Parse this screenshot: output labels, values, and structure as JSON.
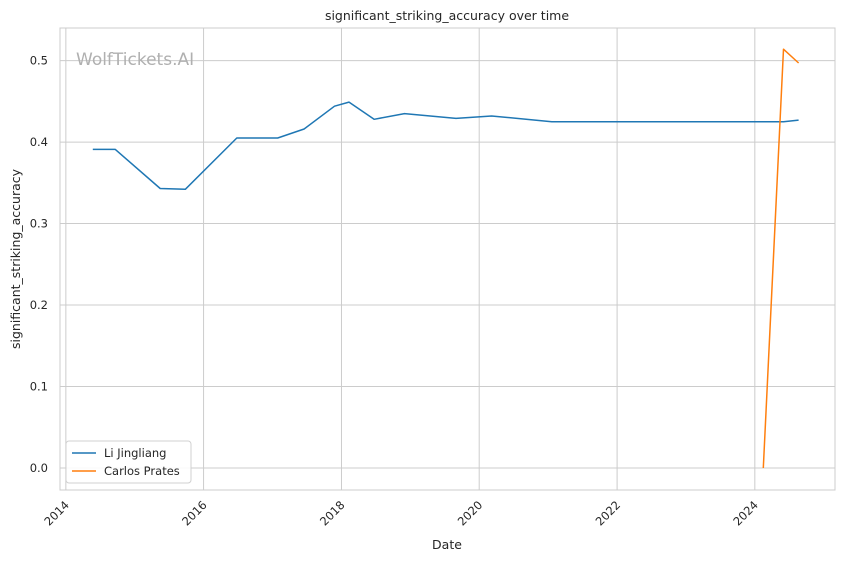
{
  "watermark": "WolfTickets.AI",
  "chart_data": {
    "type": "line",
    "title": "significant_striking_accuracy over time",
    "xlabel": "Date",
    "ylabel": "significant_striking_accuracy",
    "x_ticks": [
      "2014",
      "2016",
      "2018",
      "2020",
      "2022",
      "2024"
    ],
    "y_ticks": [
      "0.0",
      "0.1",
      "0.2",
      "0.3",
      "0.4",
      "0.5"
    ],
    "xlim": [
      "2013-12-01",
      "2025-03-01"
    ],
    "ylim": [
      -0.027,
      0.54
    ],
    "grid": true,
    "legend_placement": "lower-left",
    "series": [
      {
        "name": "Li Jingliang",
        "color": "#1f77b4",
        "points": [
          [
            "2014-05-24",
            0.391
          ],
          [
            "2014-09-20",
            0.391
          ],
          [
            "2015-05-16",
            0.343
          ],
          [
            "2015-09-26",
            0.342
          ],
          [
            "2016-06-25",
            0.405
          ],
          [
            "2017-01-28",
            0.405
          ],
          [
            "2017-06-17",
            0.416
          ],
          [
            "2017-11-25",
            0.444
          ],
          [
            "2018-02-10",
            0.449
          ],
          [
            "2018-06-23",
            0.428
          ],
          [
            "2018-12-01",
            0.435
          ],
          [
            "2019-08-31",
            0.429
          ],
          [
            "2020-03-07",
            0.432
          ],
          [
            "2021-01-20",
            0.425
          ],
          [
            "2022-07-30",
            0.425
          ],
          [
            "2022-09-15",
            0.425
          ],
          [
            "2024-06-01",
            0.425
          ],
          [
            "2024-08-20",
            0.427
          ]
        ]
      },
      {
        "name": "Carlos Prates",
        "color": "#ff7f0e",
        "points": [
          [
            "2024-02-15",
            0.0
          ],
          [
            "2024-06-01",
            0.514
          ],
          [
            "2024-08-20",
            0.497
          ]
        ]
      }
    ]
  }
}
